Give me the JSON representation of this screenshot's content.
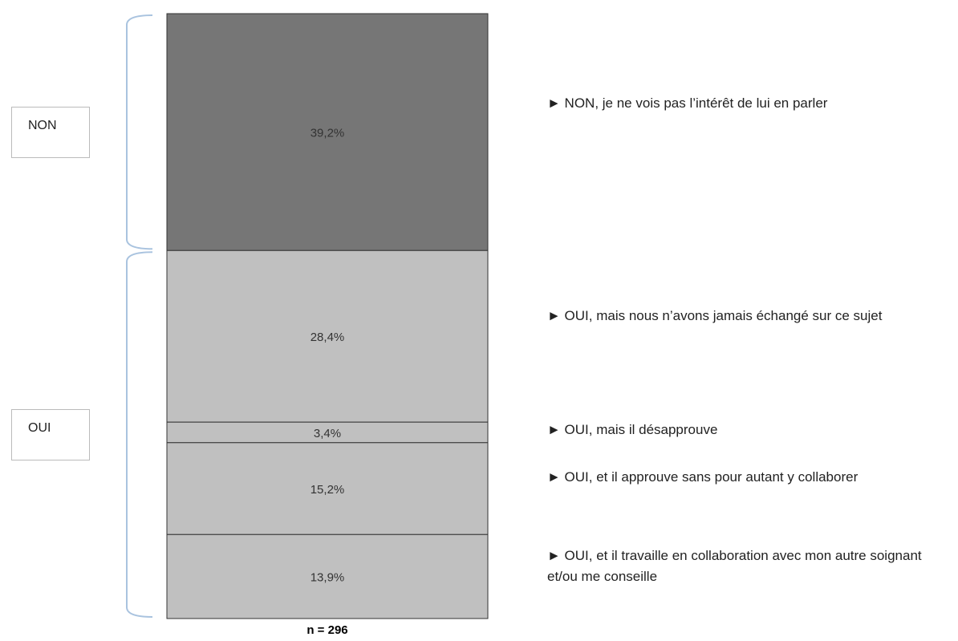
{
  "chart_data": {
    "type": "bar",
    "note": "n = 296",
    "groups": [
      {
        "label": "NON",
        "color": "#767676",
        "series": [
          {
            "name": "► NON, je ne vois pas l’intérêt de lui en parler",
            "values": [
              39.2
            ],
            "value_labels": [
              "39,2%"
            ]
          }
        ]
      },
      {
        "label": "OUI",
        "color": "#c0c0c0",
        "series": [
          {
            "name": "► OUI, mais nous n’avons jamais échangé sur ce sujet",
            "values": [
              28.4
            ],
            "value_labels": [
              "28,4%"
            ]
          },
          {
            "name": "► OUI, mais il désapprouve",
            "values": [
              3.4
            ],
            "value_labels": [
              "3,4%"
            ]
          },
          {
            "name": "► OUI, et il approuve sans pour autant y collaborer",
            "values": [
              15.2
            ],
            "value_labels": [
              "15,2%"
            ]
          },
          {
            "name": "► OUI, et il travaille en collaboration avec mon autre soignant et/ou me conseille",
            "values": [
              13.9
            ],
            "value_labels": [
              "13,9%"
            ]
          }
        ]
      }
    ]
  }
}
